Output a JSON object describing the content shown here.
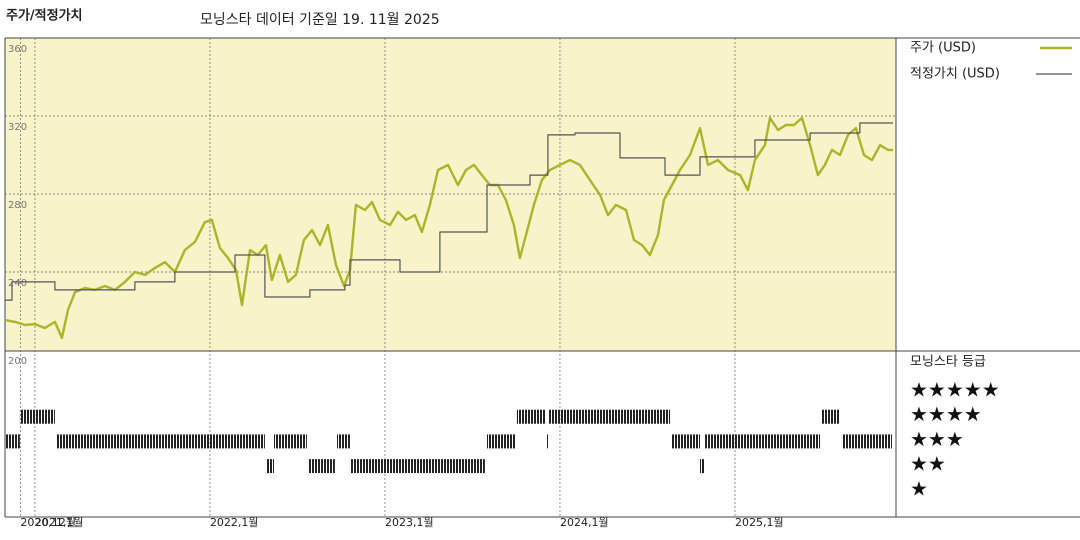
{
  "chart_data": {
    "type": "line",
    "title": "주가/적정가치",
    "subtitle": "모닝스타 데이터 기준일 19. 11월 2025",
    "xlim": [
      2020.829,
      2025.92
    ],
    "xticks": [
      {
        "value": 2020.917,
        "label": "2020,12월"
      },
      {
        "value": 2021,
        "label": "2021,1월"
      },
      {
        "value": 2022,
        "label": "2022,1월"
      },
      {
        "value": 2023,
        "label": "2023,1월"
      },
      {
        "value": 2024,
        "label": "2024,1월"
      },
      {
        "value": 2025,
        "label": "2025,1월"
      }
    ],
    "ylim": [
      200,
      360
    ],
    "yticks": [
      200,
      240,
      280,
      320,
      360
    ],
    "grid": true,
    "series": [
      {
        "name": "주가 (USD)",
        "color": "#a9b52a",
        "x": [
          2020.829,
          2020.886,
          2020.943,
          2021,
          2021.057,
          2021.114,
          2021.154,
          2021.189,
          2021.229,
          2021.286,
          2021.343,
          2021.4,
          2021.457,
          2021.514,
          2021.571,
          2021.629,
          2021.686,
          2021.743,
          2021.8,
          2021.857,
          2021.914,
          2021.971,
          2022.011,
          2022.057,
          2022.103,
          2022.149,
          2022.183,
          2022.229,
          2022.274,
          2022.32,
          2022.354,
          2022.4,
          2022.446,
          2022.491,
          2022.537,
          2022.583,
          2022.629,
          2022.674,
          2022.72,
          2022.766,
          2022.8,
          2022.834,
          2022.886,
          2022.926,
          2022.971,
          2023.029,
          2023.074,
          2023.12,
          2023.171,
          2023.211,
          2023.257,
          2023.303,
          2023.36,
          2023.417,
          2023.463,
          2023.509,
          2023.554,
          2023.6,
          2023.646,
          2023.691,
          2023.737,
          2023.771,
          2023.806,
          2023.851,
          2023.897,
          2023.943,
          2024,
          2024.057,
          2024.114,
          2024.171,
          2024.229,
          2024.274,
          2024.32,
          2024.377,
          2024.423,
          2024.469,
          2024.514,
          2024.56,
          2024.594,
          2024.64,
          2024.686,
          2024.743,
          2024.8,
          2024.846,
          2024.903,
          2024.96,
          2025.029,
          2025.074,
          2025.114,
          2025.171,
          2025.2,
          2025.246,
          2025.291,
          2025.337,
          2025.383,
          2025.429,
          2025.474,
          2025.514,
          2025.554,
          2025.6,
          2025.646,
          2025.691,
          2025.737,
          2025.783,
          2025.829,
          2025.874,
          2025.903
        ],
        "values": [
          215.4,
          214.4,
          212.8,
          213.3,
          211.3,
          214.4,
          206.2,
          220.5,
          229.7,
          231.8,
          230.8,
          232.8,
          230.8,
          234.9,
          240,
          238.5,
          242.1,
          245.1,
          240,
          251.3,
          255.4,
          265.6,
          266.7,
          252.3,
          247.2,
          241,
          223.1,
          251.3,
          248.7,
          253.8,
          235.9,
          248.7,
          234.9,
          238.5,
          256.4,
          261.5,
          253.8,
          264.1,
          243.6,
          232.8,
          241,
          274.4,
          271.8,
          275.9,
          266.7,
          264.1,
          270.8,
          266.7,
          269.2,
          260.5,
          274.4,
          292.3,
          294.9,
          284.6,
          292.3,
          294.9,
          289.7,
          284.6,
          284.6,
          276.9,
          264.1,
          247.2,
          259,
          274.4,
          287.2,
          292.3,
          294.9,
          297.4,
          294.9,
          287.2,
          279.5,
          269.2,
          274.4,
          271.8,
          256.4,
          253.8,
          248.7,
          259,
          276.9,
          284.6,
          292.3,
          300,
          313.8,
          294.9,
          297.4,
          292.3,
          289.7,
          282,
          297.4,
          305.1,
          319,
          312.8,
          315.4,
          315.4,
          319,
          305.1,
          289.7,
          294.9,
          302.6,
          300,
          310.3,
          313.8,
          300,
          297.4,
          305.1,
          302.6,
          302.6
        ]
      },
      {
        "name": "적정가치 (USD)",
        "color": "#555555",
        "step": true,
        "x": [
          2020.829,
          2020.869,
          2021.114,
          2021.571,
          2021.8,
          2022.143,
          2022.314,
          2022.571,
          2022.771,
          2022.8,
          2023.086,
          2023.314,
          2023.583,
          2023.829,
          2023.931,
          2024.086,
          2024.343,
          2024.6,
          2024.8,
          2025.114,
          2025.429,
          2025.714,
          2025.903
        ],
        "values": [
          225.6,
          234.9,
          230.8,
          234.9,
          240,
          248.7,
          227.2,
          230.8,
          233.3,
          246.2,
          240,
          260.5,
          284.6,
          289.7,
          310.3,
          311.3,
          298.5,
          289.7,
          299,
          307.7,
          311.3,
          316.4,
          316.4
        ]
      }
    ],
    "ratings": {
      "title": "모닝스타 등급",
      "labels": [
        "★★★★★",
        "★★★★",
        "★★★",
        "★★",
        "★"
      ],
      "segments": [
        {
          "start": 2020.829,
          "end": 2020.914,
          "stars": 3
        },
        {
          "start": 2020.914,
          "end": 2021.114,
          "stars": 4
        },
        {
          "start": 2021.126,
          "end": 2022.314,
          "stars": 3
        },
        {
          "start": 2022.32,
          "end": 2022.366,
          "stars": 2
        },
        {
          "start": 2022.366,
          "end": 2022.554,
          "stars": 3
        },
        {
          "start": 2022.56,
          "end": 2022.714,
          "stars": 2
        },
        {
          "start": 2022.726,
          "end": 2022.8,
          "stars": 3
        },
        {
          "start": 2022.8,
          "end": 2023.571,
          "stars": 2
        },
        {
          "start": 2023.583,
          "end": 2023.743,
          "stars": 3
        },
        {
          "start": 2023.754,
          "end": 2023.92,
          "stars": 4
        },
        {
          "start": 2023.926,
          "end": 2023.937,
          "stars": 3
        },
        {
          "start": 2023.937,
          "end": 2024.629,
          "stars": 4
        },
        {
          "start": 2024.64,
          "end": 2024.8,
          "stars": 3
        },
        {
          "start": 2024.8,
          "end": 2024.823,
          "stars": 2
        },
        {
          "start": 2024.829,
          "end": 2025.486,
          "stars": 3
        },
        {
          "start": 2025.497,
          "end": 2025.6,
          "stars": 4
        },
        {
          "start": 2025.611,
          "end": 2025.897,
          "stars": 3
        }
      ]
    }
  }
}
